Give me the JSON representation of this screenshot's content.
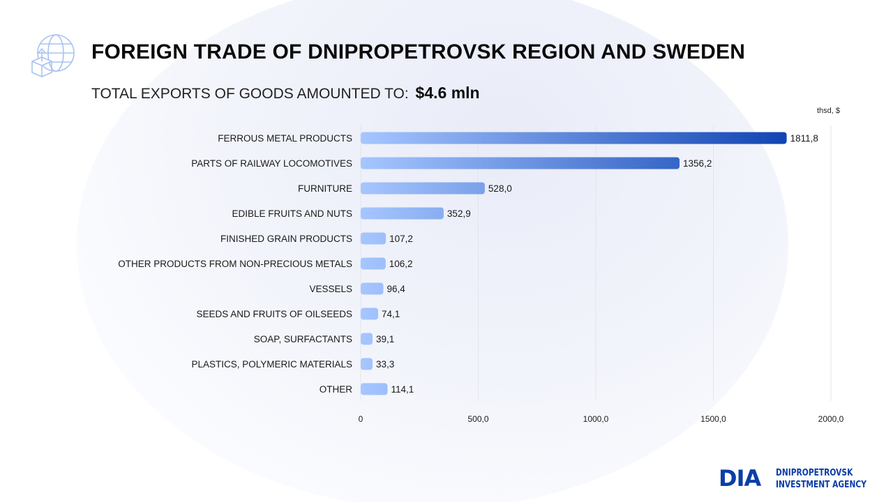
{
  "header": {
    "title": "FOREIGN TRADE OF DNIPROPETROVSK REGION AND SWEDEN",
    "subtitle_prefix": "TOTAL EXPORTS OF GOODS AMOUNTED TO:",
    "subtitle_total": "$4.6 mln",
    "icon": "globe-export-icon"
  },
  "chart_data": {
    "type": "bar",
    "orientation": "horizontal",
    "unit_label": "thsd, $",
    "categories": [
      "FERROUS METAL PRODUCTS",
      "PARTS OF RAILWAY LOCOMOTIVES",
      "FURNITURE",
      "EDIBLE FRUITS AND NUTS",
      "FINISHED GRAIN PRODUCTS",
      "OTHER PRODUCTS FROM NON-PRECIOUS METALS",
      "VESSELS",
      "SEEDS AND FRUITS OF OILSEEDS",
      "SOAP, SURFACTANTS",
      "PLASTICS, POLYMERIC MATERIALS",
      "OTHER"
    ],
    "values": [
      1811.8,
      1356.2,
      528.0,
      352.9,
      107.2,
      106.2,
      96.4,
      74.1,
      39.1,
      33.3,
      114.1
    ],
    "value_labels": [
      "1811,8",
      "1356,2",
      "528,0",
      "352,9",
      "107,2",
      "106,2",
      "96,4",
      "74,1",
      "39,1",
      "33,3",
      "114,1"
    ],
    "xlim": [
      0,
      2000
    ],
    "ticks": [
      0,
      500,
      1000,
      1500,
      2000
    ],
    "tick_labels": [
      "0",
      "500,0",
      "1000,0",
      "1500,0",
      "2000,0"
    ],
    "grid": true,
    "colors": {
      "bar_start": "#a6c6ff",
      "bar_end": "#0a3fb0",
      "grid": "#e3e5ea"
    }
  },
  "footer": {
    "logo_mark": "DIA",
    "logo_line1": "DNIPROPETROVSK",
    "logo_line2": "INVESTMENT AGENCY",
    "brand_color": "#0b3ea8"
  }
}
